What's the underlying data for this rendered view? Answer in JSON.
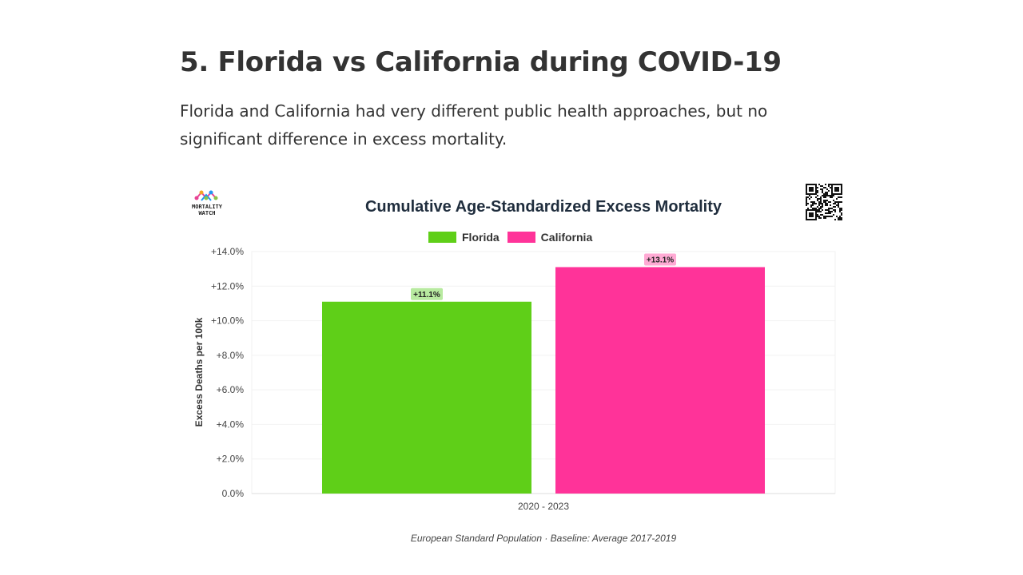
{
  "section": {
    "heading": "5. Florida vs California during COVID-19",
    "intro": "Florida and California had very different public health approaches, but no significant difference in excess mortality."
  },
  "logo": {
    "line1": "MORTALITY",
    "line2": "WATCH",
    "colors": [
      "#e84393",
      "#f5a623",
      "#8bc34a",
      "#2196f3"
    ]
  },
  "qr_icon": "qr-code-icon",
  "colors": {
    "florida": "#5fcf18",
    "california": "#ff3399",
    "florida_label_bg": "#b8eaa0",
    "california_label_bg": "#ffaad4"
  },
  "chart_data": {
    "type": "bar",
    "title": "Cumulative Age-Standardized Excess Mortality",
    "ylabel": "Excess Deaths per 100k",
    "categories": [
      "2020 - 2023"
    ],
    "ylim": [
      0,
      14
    ],
    "yticks": [
      "0.0%",
      "+2.0%",
      "+4.0%",
      "+6.0%",
      "+8.0%",
      "+10.0%",
      "+12.0%",
      "+14.0%"
    ],
    "series": [
      {
        "name": "Florida",
        "values": [
          11.1
        ],
        "label": "+11.1%"
      },
      {
        "name": "California",
        "values": [
          13.1
        ],
        "label": "+13.1%"
      }
    ],
    "legend_position": "top-center",
    "grid": true,
    "footer": "European Standard Population · Baseline: Average 2017-2019"
  }
}
